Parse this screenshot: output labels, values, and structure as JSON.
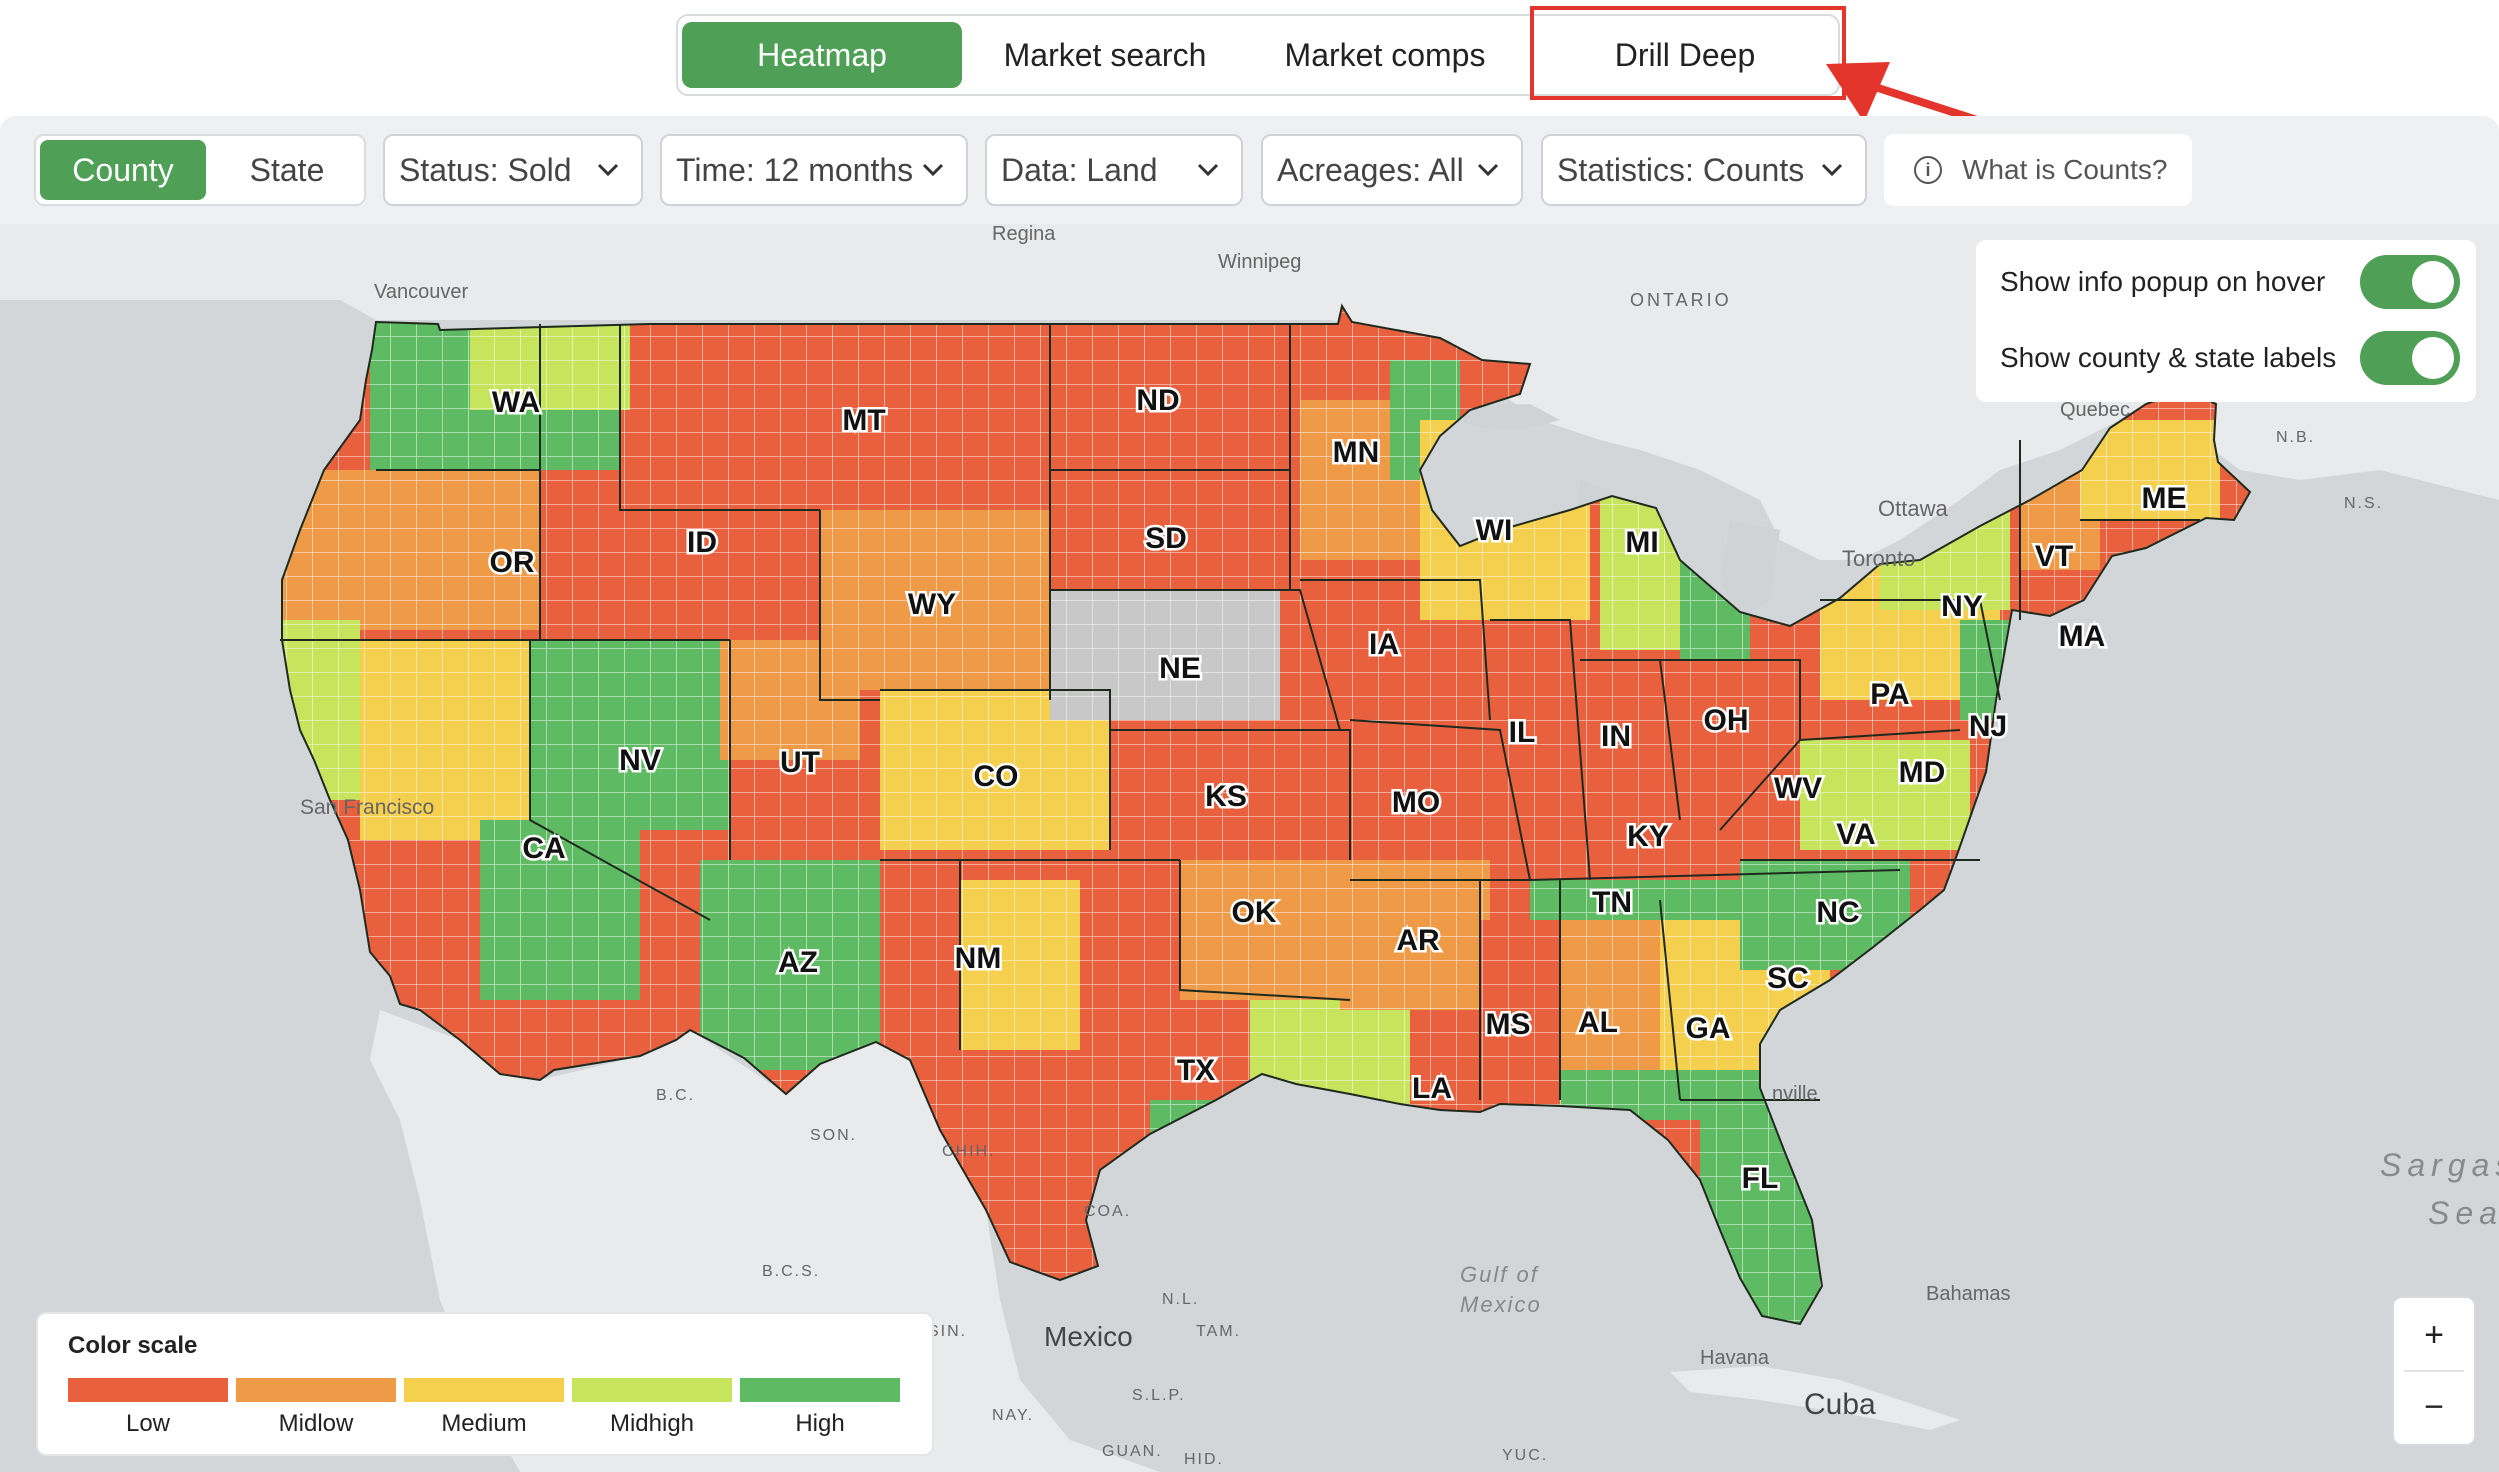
{
  "tabs": [
    {
      "label": "Heatmap",
      "active": true
    },
    {
      "label": "Market search",
      "active": false
    },
    {
      "label": "Market comps",
      "active": false
    },
    {
      "label": "Drill Deep",
      "active": false
    }
  ],
  "geography_toggle": {
    "options": [
      "County",
      "State"
    ],
    "selected": "County"
  },
  "filters": [
    {
      "label": "Status: Sold"
    },
    {
      "label": "Time: 12 months"
    },
    {
      "label": "Data: Land"
    },
    {
      "label": "Acreages: All"
    },
    {
      "label": "Statistics: Counts"
    }
  ],
  "info_link": "What is Counts?",
  "toggles": [
    {
      "label": "Show info popup on hover",
      "on": true
    },
    {
      "label": "Show county & state labels",
      "on": true
    }
  ],
  "legend": {
    "title": "Color scale",
    "items": [
      {
        "label": "Low",
        "color": "#e9603f"
      },
      {
        "label": "Midlow",
        "color": "#ef9a47"
      },
      {
        "label": "Medium",
        "color": "#f5cf4e"
      },
      {
        "label": "Midhigh",
        "color": "#c6e45c"
      },
      {
        "label": "High",
        "color": "#5fbb63"
      }
    ]
  },
  "zoom": {
    "in": "+",
    "out": "−"
  },
  "state_labels": {
    "WA": "WA",
    "OR": "OR",
    "CA": "CA",
    "NV": "NV",
    "ID": "ID",
    "MT": "MT",
    "WY": "WY",
    "UT": "UT",
    "AZ": "AZ",
    "CO": "CO",
    "NM": "NM",
    "ND": "ND",
    "SD": "SD",
    "NE": "NE",
    "KS": "KS",
    "OK": "OK",
    "TX": "TX",
    "MN": "MN",
    "IA": "IA",
    "MO": "MO",
    "AR": "AR",
    "LA": "LA",
    "WI": "WI",
    "IL": "IL",
    "MI": "MI",
    "IN": "IN",
    "OH": "OH",
    "KY": "KY",
    "TN": "TN",
    "MS": "MS",
    "AL": "AL",
    "GA": "GA",
    "FL": "FL",
    "SC": "SC",
    "NC": "NC",
    "VA": "VA",
    "WV": "WV",
    "PA": "PA",
    "NY": "NY",
    "MD": "MD",
    "NJ": "NJ",
    "VT": "VT",
    "MA": "MA",
    "ME": "ME"
  },
  "place_labels": {
    "regina": "Regina",
    "winnipeg": "Winnipeg",
    "vancouver": "Vancouver",
    "ontario": "ONTARIO",
    "quebec": "Quebec",
    "ottawa": "Ottawa",
    "toronto": "Toronto",
    "nb": "N.B.",
    "ns": "N.S.",
    "san_francisco": "San Francisco",
    "bc": "B.C.",
    "son": "SON.",
    "chih": "CHIH.",
    "coa": "COA.",
    "bcs": "B.C.S.",
    "sin": "SIN.",
    "nl": "N.L.",
    "tam": "TAM.",
    "mexico": "Mexico",
    "slp": "S.L.P.",
    "nay": "NAY.",
    "guan": "GUAN.",
    "hid": "HID.",
    "yuc": "YUC.",
    "gulf_1": "Gulf of",
    "gulf_2": "Mexico",
    "havana": "Havana",
    "cuba": "Cuba",
    "bahamas": "Bahamas",
    "nville": "nville",
    "sargasso_1": "Sargas",
    "sargasso_2": "Sea"
  }
}
